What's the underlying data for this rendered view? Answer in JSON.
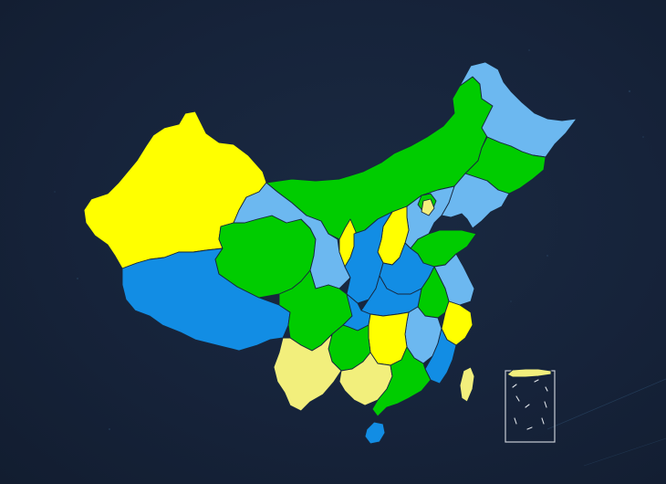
{
  "palette": {
    "background": "#16233a",
    "border": "#17273d",
    "green": "#00cc00",
    "light_blue": "#6cb8f0",
    "blue": "#128de4",
    "yellow": "#ffff00",
    "pale_yellow": "#f2ef7c",
    "inset_frame": "#c7ccd4"
  },
  "map": {
    "region_colors": {
      "xinjiang": "yellow",
      "tibet": "blue",
      "qinghai": "green",
      "gansu": "light_blue",
      "inner_mongolia": "green",
      "heilongjiang": "light_blue",
      "jilin": "green",
      "liaoning": "light_blue",
      "hebei": "light_blue",
      "beijing": "green",
      "tianjin": "pale_yellow",
      "shanxi": "yellow",
      "ningxia": "yellow",
      "shaanxi": "blue",
      "shandong": "green",
      "henan": "blue",
      "jiangsu": "light_blue",
      "anhui": "green",
      "hubei": "blue",
      "sichuan": "green",
      "chongqing": "blue",
      "zhejiang": "yellow",
      "jiangxi": "light_blue",
      "hunan": "yellow",
      "fujian": "blue",
      "guizhou": "green",
      "yunnan": "pale_yellow",
      "guangxi": "pale_yellow",
      "guangdong": "green",
      "hainan": "blue",
      "taiwan": "pale_yellow",
      "south_china_sea_islands": "pale_yellow"
    }
  }
}
